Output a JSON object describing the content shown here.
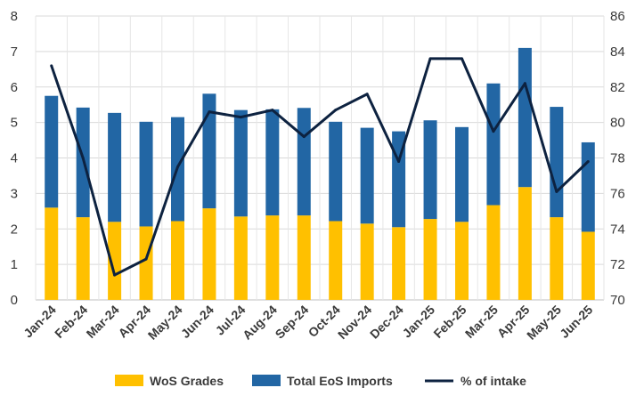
{
  "chart_data": {
    "type": "bar",
    "stacked": true,
    "categories": [
      "Jan-24",
      "Feb-24",
      "Mar-24",
      "Apr-24",
      "May-24",
      "Jun-24",
      "Jul-24",
      "Aug-24",
      "Sep-24",
      "Oct-24",
      "Nov-24",
      "Dec-24",
      "Jan-25",
      "Feb-25",
      "Mar-25",
      "Apr-25",
      "May-25",
      "Jun-25"
    ],
    "series": [
      {
        "name": "WoS Grades",
        "type": "bar",
        "axis": "left",
        "color": "#FFC000",
        "values": [
          2.6,
          2.33,
          2.2,
          2.07,
          2.22,
          2.58,
          2.35,
          2.38,
          2.38,
          2.22,
          2.15,
          2.05,
          2.28,
          2.2,
          2.67,
          3.18,
          2.33,
          1.92
        ]
      },
      {
        "name": "Total EoS Imports",
        "type": "bar",
        "axis": "left",
        "color": "#2266A4",
        "values": [
          3.15,
          3.09,
          3.07,
          2.95,
          2.93,
          3.23,
          3.0,
          2.99,
          3.03,
          2.8,
          2.7,
          2.7,
          2.78,
          2.67,
          3.43,
          3.92,
          3.11,
          2.52
        ]
      },
      {
        "name": "% of intake",
        "type": "line",
        "axis": "right",
        "color": "#0D2240",
        "values": [
          83.2,
          78.0,
          71.4,
          72.3,
          77.5,
          80.6,
          80.3,
          80.7,
          79.2,
          80.7,
          81.6,
          77.8,
          83.6,
          83.6,
          79.5,
          82.2,
          76.1,
          77.8
        ]
      }
    ],
    "y_left": {
      "min": 0,
      "max": 8,
      "ticks": [
        0,
        1,
        2,
        3,
        4,
        5,
        6,
        7,
        8
      ]
    },
    "y_right": {
      "min": 70,
      "max": 86,
      "ticks": [
        70,
        72,
        74,
        76,
        78,
        80,
        82,
        84,
        86
      ]
    },
    "grid": true,
    "legend_position": "bottom",
    "title": "",
    "xlabel": "",
    "ylabel": ""
  }
}
